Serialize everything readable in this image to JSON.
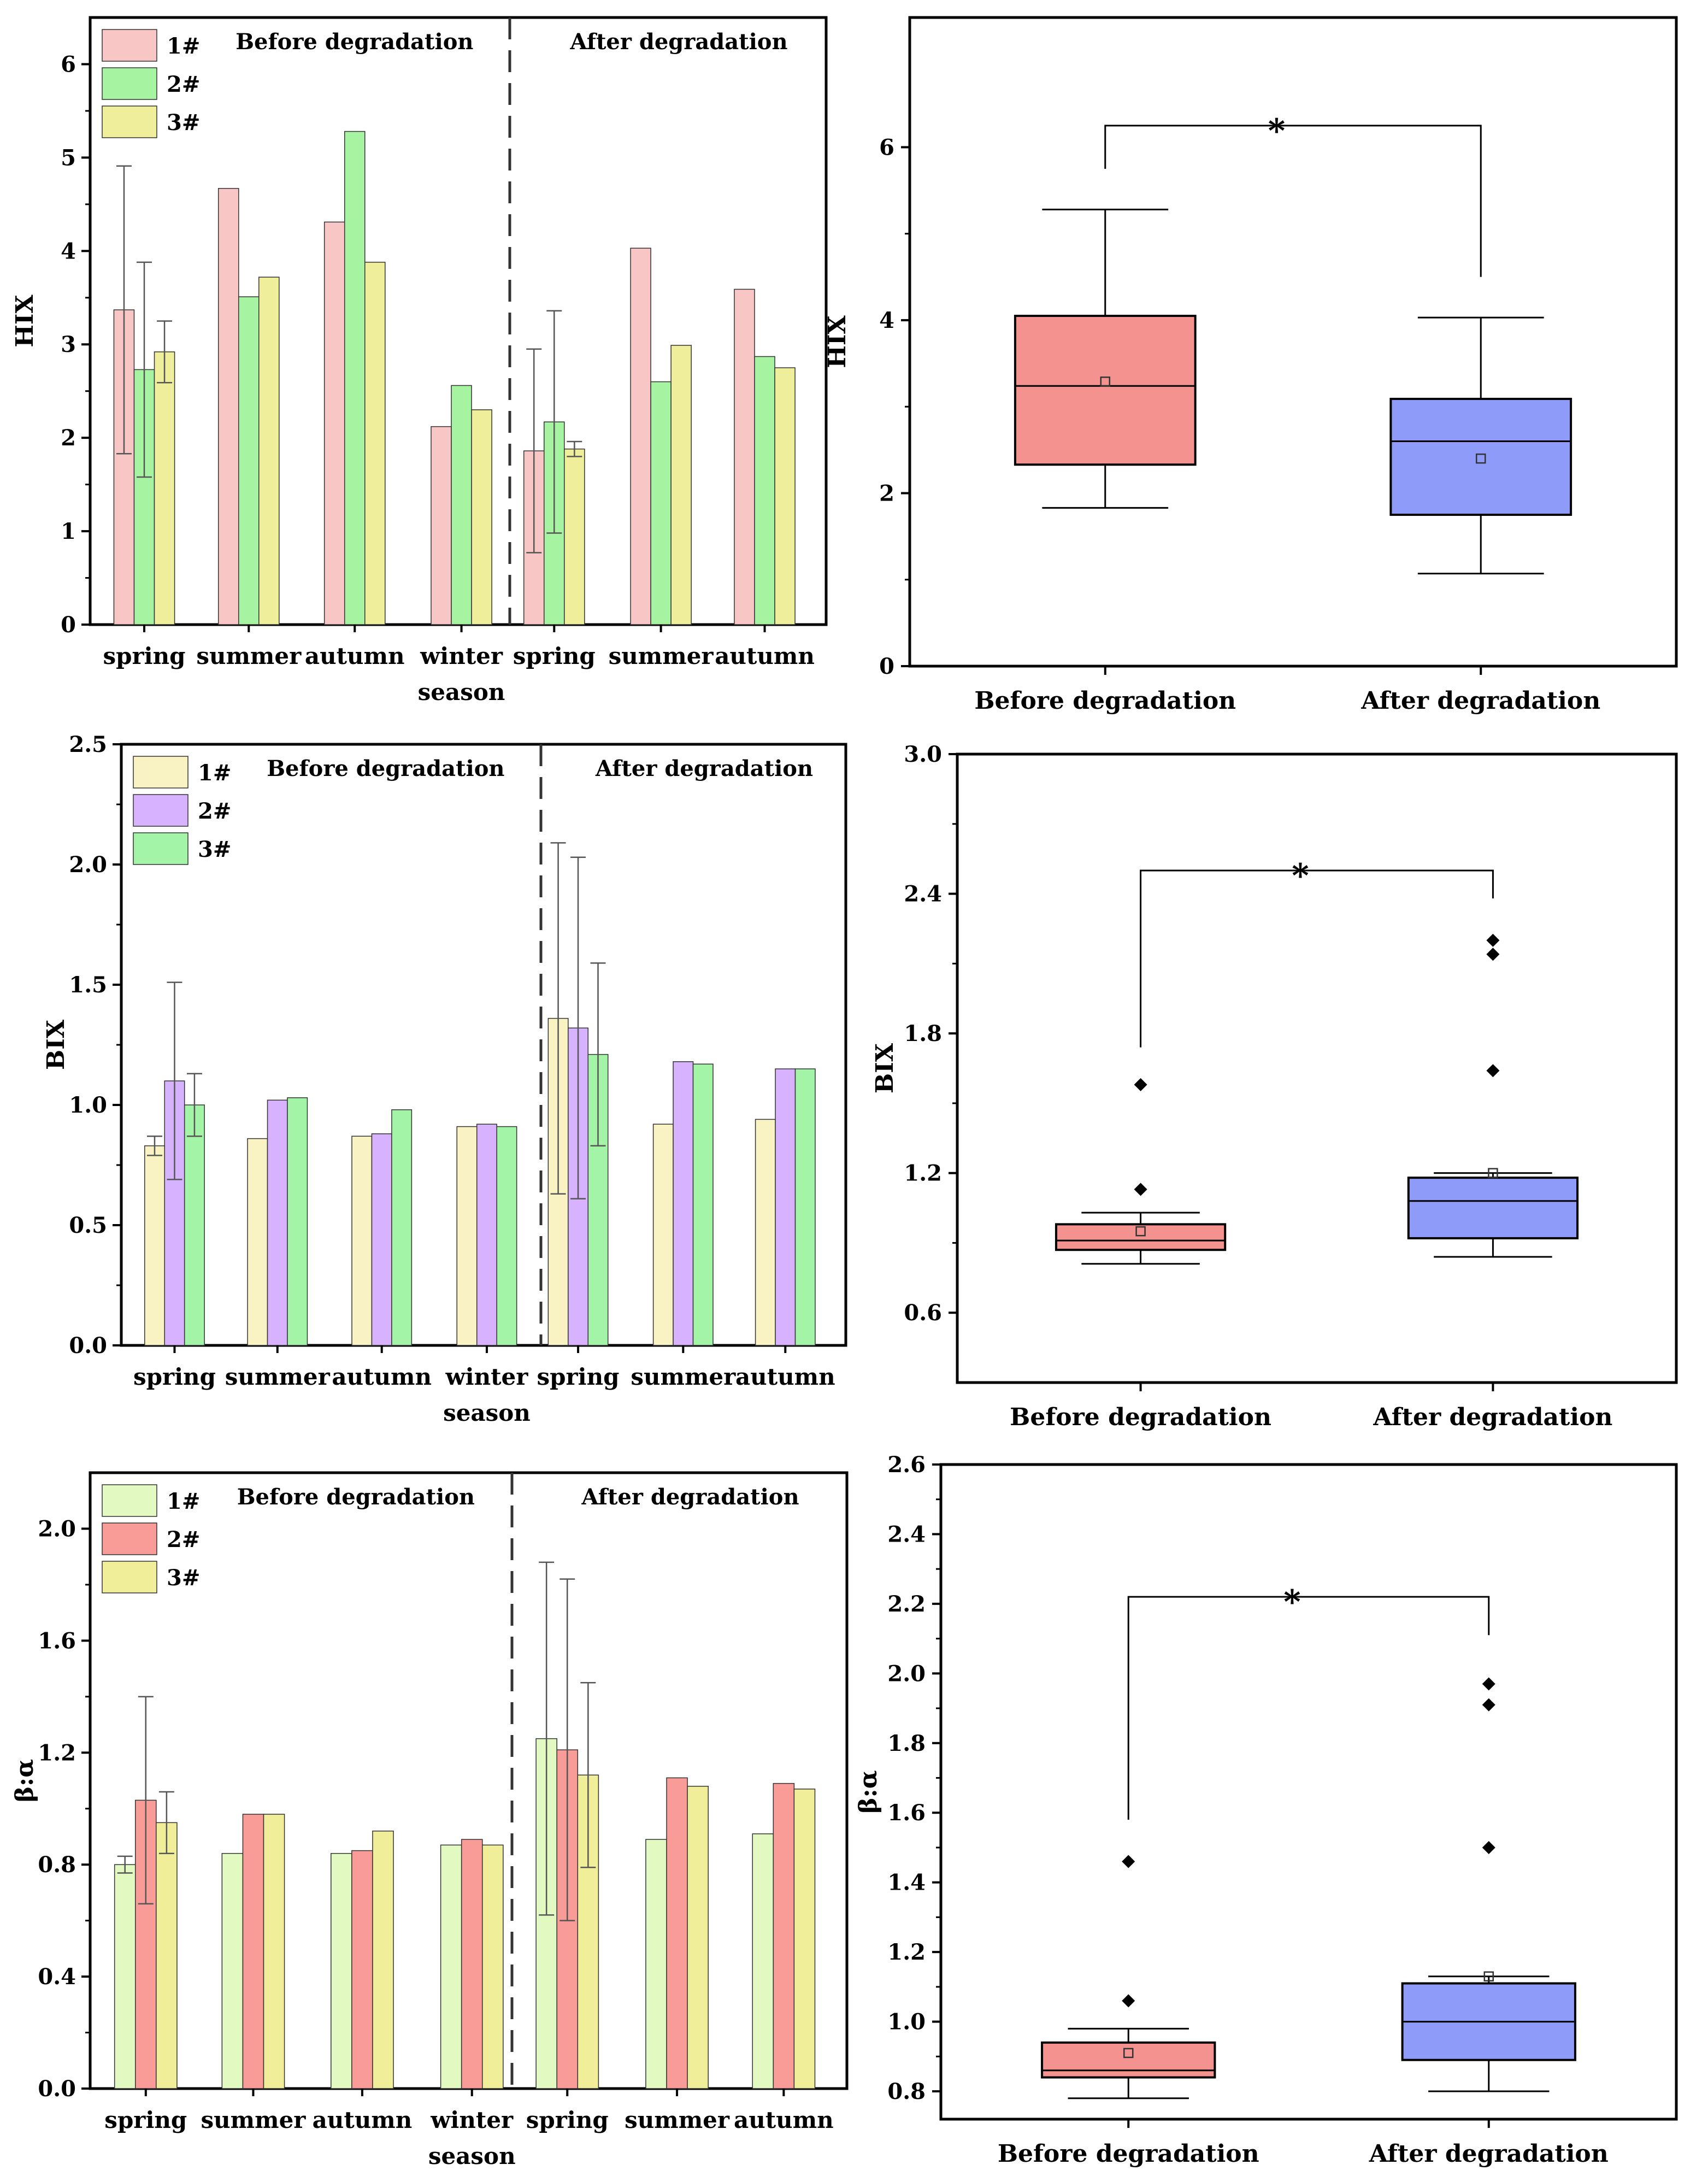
{
  "chart_data": [
    {
      "id": "hix-bar",
      "type": "bar",
      "ylabel": "HIX",
      "ylim": [
        0,
        6.5
      ],
      "yticks": [
        "0",
        "1",
        "2",
        "3",
        "4",
        "5",
        "6"
      ],
      "categories": [
        "spring",
        "summer",
        "autumn",
        "winter",
        "spring",
        "summer",
        "autumn"
      ],
      "category_sublabel": "season",
      "sections": [
        "Before degradation",
        "After degradation"
      ],
      "legend": [
        "1#",
        "2#",
        "3#"
      ],
      "colors": [
        "#F9C6C6",
        "#A6F4A2",
        "#EFEE9A"
      ],
      "series": [
        {
          "name": "1#",
          "values": [
            3.37,
            4.67,
            4.31,
            2.12,
            1.86,
            4.03,
            3.59
          ]
        },
        {
          "name": "2#",
          "values": [
            2.73,
            3.51,
            5.28,
            2.56,
            2.17,
            2.6,
            2.87
          ]
        },
        {
          "name": "3#",
          "values": [
            2.92,
            3.72,
            3.88,
            2.3,
            1.88,
            2.99,
            2.75
          ]
        }
      ],
      "errors": [
        [
          1.54,
          0,
          0,
          0,
          1.09,
          0,
          0
        ],
        [
          1.15,
          0,
          0,
          0,
          1.19,
          0,
          0
        ],
        [
          0.33,
          0,
          0,
          0,
          0.08,
          0,
          0
        ]
      ]
    },
    {
      "id": "bix-bar",
      "type": "bar",
      "ylabel": "BIX",
      "ylim": [
        0,
        2.5
      ],
      "yticks": [
        "0.0",
        "0.5",
        "1.0",
        "1.5",
        "2.0",
        "2.5"
      ],
      "categories": [
        "spring",
        "summer",
        "autumn",
        "winter",
        "spring",
        "summer",
        "autumn"
      ],
      "category_sublabel": "season",
      "sections": [
        "Before degradation",
        "After degradation"
      ],
      "legend": [
        "1#",
        "2#",
        "3#"
      ],
      "colors": [
        "#F9F3C3",
        "#D7B3FF",
        "#A3F4A7"
      ],
      "series": [
        {
          "name": "1#",
          "values": [
            0.83,
            0.86,
            0.87,
            0.91,
            1.36,
            0.92,
            0.94
          ]
        },
        {
          "name": "2#",
          "values": [
            1.1,
            1.02,
            0.88,
            0.92,
            1.32,
            1.18,
            1.15
          ]
        },
        {
          "name": "3#",
          "values": [
            1.0,
            1.03,
            0.98,
            0.91,
            1.21,
            1.17,
            1.15
          ]
        }
      ],
      "errors": [
        [
          0.04,
          0,
          0,
          0,
          0.73,
          0,
          0
        ],
        [
          0.41,
          0,
          0,
          0,
          0.71,
          0,
          0
        ],
        [
          0.13,
          0,
          0,
          0,
          0.38,
          0,
          0
        ]
      ]
    },
    {
      "id": "ba-bar",
      "type": "bar",
      "ylabel": "β:α",
      "ylim": [
        0,
        2.2
      ],
      "yticks": [
        "0.0",
        "0.4",
        "0.8",
        "1.2",
        "1.6",
        "2.0"
      ],
      "categories": [
        "spring",
        "summer",
        "autumn",
        "winter",
        "spring",
        "summer",
        "autumn"
      ],
      "category_sublabel": "season",
      "sections": [
        "Before degradation",
        "After degradation"
      ],
      "legend": [
        "1#",
        "2#",
        "3#"
      ],
      "colors": [
        "#E3F9C2",
        "#F99B97",
        "#F1EE99"
      ],
      "series": [
        {
          "name": "1#",
          "values": [
            0.8,
            0.84,
            0.84,
            0.87,
            1.25,
            0.89,
            0.91
          ]
        },
        {
          "name": "2#",
          "values": [
            1.03,
            0.98,
            0.85,
            0.89,
            1.21,
            1.11,
            1.09
          ]
        },
        {
          "name": "3#",
          "values": [
            0.95,
            0.98,
            0.92,
            0.87,
            1.12,
            1.08,
            1.07
          ]
        }
      ],
      "errors": [
        [
          0.03,
          0,
          0,
          0,
          0.63,
          0,
          0
        ],
        [
          0.37,
          0,
          0,
          0,
          0.61,
          0,
          0
        ],
        [
          0.11,
          0,
          0,
          0,
          0.33,
          0,
          0
        ]
      ]
    },
    {
      "id": "hix-box",
      "type": "box",
      "ylabel": "HIX",
      "ylim": [
        0,
        7.5
      ],
      "yticks": [
        "0",
        "2",
        "4",
        "6"
      ],
      "ytick_values": [
        0,
        2,
        4,
        6
      ],
      "categories": [
        "Before degradation",
        "After degradation"
      ],
      "significance": "*",
      "sig_level": 6.25,
      "sig_left_bottom": 5.75,
      "sig_right_bottom": 4.5,
      "colors": [
        "#F4928F",
        "#8F9BF9"
      ],
      "boxes": [
        {
          "whisker_low": 1.83,
          "q1": 2.33,
          "median": 3.24,
          "q3": 4.05,
          "whisker_high": 5.28,
          "mean": 3.29,
          "outliers": []
        },
        {
          "whisker_low": 1.07,
          "q1": 1.75,
          "median": 2.6,
          "q3": 3.09,
          "whisker_high": 4.03,
          "mean": 2.4,
          "outliers": []
        }
      ]
    },
    {
      "id": "bix-box",
      "type": "box",
      "ylabel": "BIX",
      "ylim": [
        0.3,
        3.0
      ],
      "yticks": [
        "0.6",
        "1.2",
        "1.8",
        "2.4",
        "3.0"
      ],
      "ytick_values": [
        0.6,
        1.2,
        1.8,
        2.4,
        3.0
      ],
      "categories": [
        "Before degradation",
        "After degradation"
      ],
      "significance": "*",
      "sig_level": 2.5,
      "sig_left_bottom": 1.74,
      "sig_right_bottom": 2.38,
      "colors": [
        "#F4928F",
        "#8F9BF9"
      ],
      "boxes": [
        {
          "whisker_low": 0.81,
          "q1": 0.87,
          "median": 0.91,
          "q3": 0.98,
          "whisker_high": 1.03,
          "mean": 0.95,
          "outliers": [
            1.13,
            1.58
          ]
        },
        {
          "whisker_low": 0.84,
          "q1": 0.92,
          "median": 1.08,
          "q3": 1.18,
          "whisker_high": 1.2,
          "mean": 1.2,
          "outliers": [
            1.64,
            2.14,
            2.2
          ]
        }
      ]
    },
    {
      "id": "ba-box",
      "type": "box",
      "ylabel": "β:α",
      "ylim": [
        0.72,
        2.6
      ],
      "yticks": [
        "0.8",
        "1.0",
        "1.2",
        "1.4",
        "1.6",
        "1.8",
        "2.0",
        "2.2",
        "2.4",
        "2.6"
      ],
      "ytick_values": [
        0.8,
        1.0,
        1.2,
        1.4,
        1.6,
        1.8,
        2.0,
        2.2,
        2.4,
        2.6
      ],
      "categories": [
        "Before degradation",
        "After degradation"
      ],
      "significance": "*",
      "sig_level": 2.22,
      "sig_left_bottom": 1.58,
      "sig_right_bottom": 2.11,
      "colors": [
        "#F4928F",
        "#8F9BF9"
      ],
      "boxes": [
        {
          "whisker_low": 0.78,
          "q1": 0.84,
          "median": 0.86,
          "q3": 0.94,
          "whisker_high": 0.98,
          "mean": 0.91,
          "outliers": [
            1.06,
            1.46
          ]
        },
        {
          "whisker_low": 0.8,
          "q1": 0.89,
          "median": 1.0,
          "q3": 1.11,
          "whisker_high": 1.13,
          "mean": 1.13,
          "outliers": [
            1.5,
            1.91,
            1.97
          ]
        }
      ]
    }
  ]
}
